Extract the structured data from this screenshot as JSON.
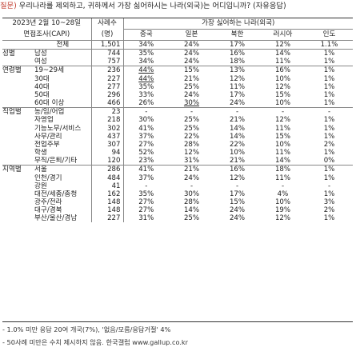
{
  "question": {
    "label": "질문)",
    "text": "우리나라를 제외하고, 귀하께서 가장 싫어하시는 나라(외국)는 어디입니까? (자유응답)"
  },
  "header": {
    "survey_line1": "2023년 2월 10~28일",
    "survey_line2": "면접조사(CAPI)",
    "count_line1": "사례수",
    "count_line2": "(명)",
    "group_title": "가장 싫어하는 나라(외국)",
    "countries": [
      "중국",
      "일본",
      "북한",
      "러시아",
      "인도"
    ]
  },
  "rows": [
    {
      "group": "",
      "label": "전체",
      "n": "1,501",
      "v": [
        "34%",
        "24%",
        "17%",
        "12%",
        "1.1%"
      ],
      "first": true
    },
    {
      "group": "성별",
      "label": "남성",
      "n": "744",
      "v": [
        "35%",
        "24%",
        "16%",
        "14%",
        "1%"
      ],
      "first": true
    },
    {
      "group": "",
      "label": "여성",
      "n": "757",
      "v": [
        "34%",
        "24%",
        "18%",
        "11%",
        "1%"
      ]
    },
    {
      "group": "연령별",
      "label": "19~29세",
      "n": "236",
      "v": [
        "44%",
        "15%",
        "13%",
        "16%",
        "1%"
      ],
      "first": true,
      "u": [
        0
      ]
    },
    {
      "group": "",
      "label": "30대",
      "n": "227",
      "v": [
        "44%",
        "21%",
        "12%",
        "10%",
        "1%"
      ],
      "u": [
        0
      ]
    },
    {
      "group": "",
      "label": "40대",
      "n": "277",
      "v": [
        "35%",
        "25%",
        "11%",
        "12%",
        "1%"
      ]
    },
    {
      "group": "",
      "label": "50대",
      "n": "296",
      "v": [
        "33%",
        "24%",
        "17%",
        "15%",
        "1%"
      ]
    },
    {
      "group": "",
      "label": "60대 이상",
      "n": "466",
      "v": [
        "26%",
        "30%",
        "24%",
        "10%",
        "1%"
      ],
      "u": [
        1
      ]
    },
    {
      "group": "직업별",
      "label": "농/임/어업",
      "n": "23",
      "v": [
        "-",
        "-",
        "-",
        "-",
        "-"
      ],
      "first": true
    },
    {
      "group": "",
      "label": "자영업",
      "n": "218",
      "v": [
        "30%",
        "25%",
        "21%",
        "12%",
        "1%"
      ]
    },
    {
      "group": "",
      "label": "기능노무/서비스",
      "n": "302",
      "v": [
        "41%",
        "25%",
        "14%",
        "11%",
        "1%"
      ]
    },
    {
      "group": "",
      "label": "사무/관리",
      "n": "437",
      "v": [
        "37%",
        "22%",
        "14%",
        "15%",
        "1%"
      ]
    },
    {
      "group": "",
      "label": "전업주부",
      "n": "307",
      "v": [
        "27%",
        "28%",
        "22%",
        "10%",
        "2%"
      ]
    },
    {
      "group": "",
      "label": "학생",
      "n": "94",
      "v": [
        "52%",
        "12%",
        "10%",
        "11%",
        "1%"
      ]
    },
    {
      "group": "",
      "label": "무직/은퇴/기타",
      "n": "120",
      "v": [
        "23%",
        "31%",
        "21%",
        "14%",
        "0%"
      ]
    },
    {
      "group": "지역별",
      "label": "서울",
      "n": "286",
      "v": [
        "41%",
        "21%",
        "16%",
        "18%",
        "1%"
      ],
      "first": true
    },
    {
      "group": "",
      "label": "인천/경기",
      "n": "484",
      "v": [
        "37%",
        "24%",
        "12%",
        "11%",
        "1%"
      ]
    },
    {
      "group": "",
      "label": "강원",
      "n": "41",
      "v": [
        "-",
        "-",
        "-",
        "-",
        "-"
      ]
    },
    {
      "group": "",
      "label": "대전/세종/충청",
      "n": "162",
      "v": [
        "35%",
        "30%",
        "17%",
        "4%",
        "1%"
      ]
    },
    {
      "group": "",
      "label": "광주/전라",
      "n": "148",
      "v": [
        "27%",
        "28%",
        "15%",
        "10%",
        "3%"
      ]
    },
    {
      "group": "",
      "label": "대구/경북",
      "n": "148",
      "v": [
        "27%",
        "14%",
        "24%",
        "19%",
        "2%"
      ]
    },
    {
      "group": "",
      "label": "부산/울산/경남",
      "n": "227",
      "v": [
        "31%",
        "25%",
        "24%",
        "12%",
        "1%"
      ]
    }
  ],
  "footnotes": [
    "- 1.0% 미만 응답 20여 개국(7%), '없음/모름/응답거절' 4%",
    "- 50사례 미만은 수치 제시하지 않음. 한국갤럽 www.gallup.co.kr"
  ]
}
